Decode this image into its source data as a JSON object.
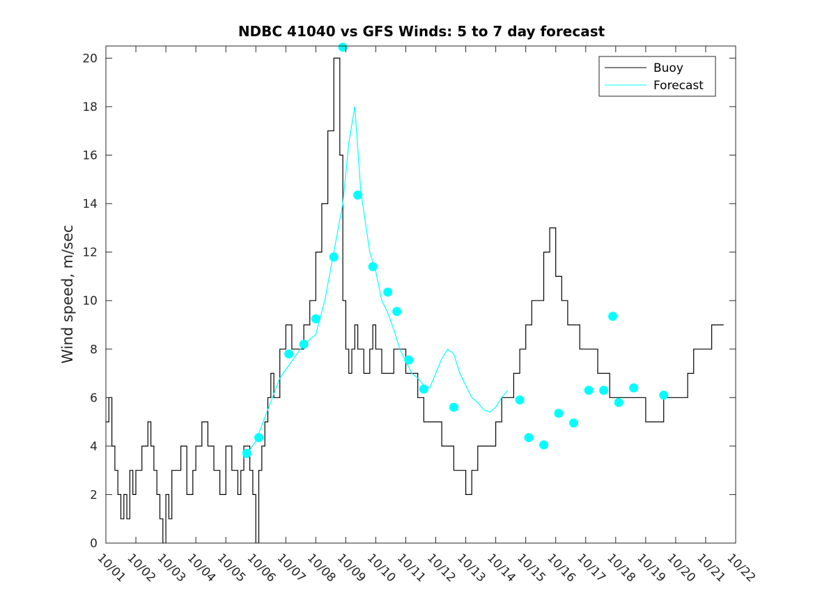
{
  "chart_data": {
    "type": "line",
    "title": "NDBC 41040 vs GFS Winds: 5 to 7 day forecast",
    "xlabel": "",
    "ylabel": "Wind speed, m/sec",
    "x_domain_days": [
      0,
      21
    ],
    "ylim": [
      0,
      20.5
    ],
    "yticks": [
      0,
      2,
      4,
      6,
      8,
      10,
      12,
      14,
      16,
      18,
      20
    ],
    "xtick_labels": [
      "10/01",
      "10/02",
      "10/03",
      "10/04",
      "10/05",
      "10/06",
      "10/07",
      "10/08",
      "10/09",
      "10/10",
      "10/11",
      "10/12",
      "10/13",
      "10/14",
      "10/15",
      "10/16",
      "10/17",
      "10/18",
      "10/19",
      "10/20",
      "10/21",
      "10/22"
    ],
    "grid": false,
    "legend": {
      "position": "top-right",
      "entries": [
        "Buoy",
        "Forecast"
      ]
    },
    "series": [
      {
        "name": "Buoy",
        "color": "#000000",
        "style": "line",
        "x": [
          0,
          0.1,
          0.2,
          0.3,
          0.4,
          0.5,
          0.6,
          0.7,
          0.8,
          0.9,
          1.0,
          1.2,
          1.4,
          1.5,
          1.6,
          1.7,
          1.8,
          1.9,
          2.0,
          2.1,
          2.2,
          2.3,
          2.5,
          2.7,
          2.9,
          3.0,
          3.2,
          3.4,
          3.6,
          3.8,
          4.0,
          4.2,
          4.4,
          4.5,
          4.6,
          4.8,
          4.9,
          5.0,
          5.1,
          5.2,
          5.3,
          5.4,
          5.5,
          5.6,
          5.8,
          6.0,
          6.2,
          6.4,
          6.6,
          6.8,
          7.0,
          7.2,
          7.4,
          7.6,
          7.8,
          7.9,
          8.0,
          8.1,
          8.2,
          8.3,
          8.4,
          8.5,
          8.6,
          8.7,
          8.8,
          8.9,
          9.0,
          9.2,
          9.4,
          9.6,
          9.8,
          10.0,
          10.2,
          10.4,
          10.6,
          10.8,
          11.0,
          11.2,
          11.4,
          11.6,
          11.8,
          12.0,
          12.2,
          12.4,
          12.6,
          12.8,
          13.0,
          13.2,
          13.4,
          13.6,
          13.8,
          14.0,
          14.2,
          14.4,
          14.6,
          14.8,
          15.0,
          15.2,
          15.4,
          15.6,
          15.8,
          16.0,
          16.2,
          16.4,
          16.6,
          16.8,
          17.0,
          17.2,
          17.4,
          17.6,
          17.8,
          18.0,
          18.2,
          18.4,
          18.6,
          18.8,
          19.0,
          19.2,
          19.4,
          19.6,
          19.8,
          20.0,
          20.2,
          20.4,
          20.6
        ],
        "y": [
          5,
          6,
          4,
          3,
          2,
          1,
          2,
          1,
          3,
          2,
          3,
          4,
          5,
          4,
          3,
          2,
          1,
          0,
          2,
          1,
          3,
          3,
          4,
          2,
          3,
          4,
          5,
          4,
          3,
          2,
          4,
          3,
          2,
          3,
          4,
          3,
          2,
          0,
          3,
          4,
          5,
          6,
          7,
          6,
          8,
          9,
          8,
          8,
          9,
          10,
          12,
          14,
          17,
          20,
          16,
          10,
          8,
          7,
          8,
          9,
          8,
          8,
          7,
          7,
          8,
          9,
          8,
          7,
          7,
          8,
          8,
          7,
          7,
          6,
          5,
          5,
          5,
          4,
          4,
          3,
          3,
          2,
          3,
          4,
          4,
          4,
          5,
          6,
          6,
          7,
          8,
          9,
          10,
          10,
          12,
          13,
          11,
          10,
          9,
          9,
          8,
          8,
          8,
          7,
          7,
          6,
          6,
          6,
          6,
          6,
          6,
          5,
          5,
          5,
          6,
          6,
          6,
          6,
          7,
          8,
          8,
          8,
          9,
          9,
          9
        ]
      },
      {
        "name": "Forecast",
        "color": "#00ffff",
        "style": "line",
        "x": [
          4.6,
          5.0,
          5.4,
          5.8,
          6.2,
          6.6,
          7.0,
          7.3,
          7.6,
          7.9,
          8.1,
          8.3,
          8.5,
          8.8,
          9.0,
          9.2,
          9.4,
          9.6,
          9.8,
          10.0,
          10.2,
          10.4,
          10.6,
          10.8,
          11.0,
          11.2,
          11.4,
          11.6,
          11.8,
          12.0,
          12.2,
          12.4,
          12.6,
          12.8,
          13.0,
          13.2,
          13.4
        ],
        "y": [
          3.5,
          4.2,
          5.5,
          6.8,
          7.5,
          8.2,
          8.6,
          10.0,
          12.0,
          14.0,
          16.5,
          18.0,
          14.5,
          12.0,
          11.2,
          10.0,
          9.5,
          8.8,
          8.0,
          7.5,
          7.0,
          6.8,
          6.5,
          6.4,
          7.0,
          7.6,
          8.0,
          7.8,
          7.0,
          6.5,
          6.0,
          5.8,
          5.5,
          5.4,
          5.6,
          6.0,
          6.3
        ]
      }
    ],
    "forecast_markers": {
      "color": "#00ffff",
      "x": [
        4.7,
        5.1,
        6.1,
        6.6,
        7.0,
        7.6,
        7.9,
        8.4,
        8.9,
        9.4,
        9.7,
        10.1,
        10.6,
        11.6,
        13.8,
        14.1,
        14.6,
        15.1,
        15.6,
        16.1,
        16.6,
        16.9,
        17.1,
        17.6,
        18.6
      ],
      "y": [
        3.7,
        4.35,
        7.8,
        8.2,
        9.25,
        11.8,
        20.45,
        14.35,
        11.4,
        10.35,
        9.55,
        7.55,
        6.35,
        5.6,
        5.9,
        4.35,
        4.05,
        5.35,
        4.95,
        6.3,
        6.3,
        9.35,
        5.8,
        6.4,
        6.1
      ]
    }
  }
}
